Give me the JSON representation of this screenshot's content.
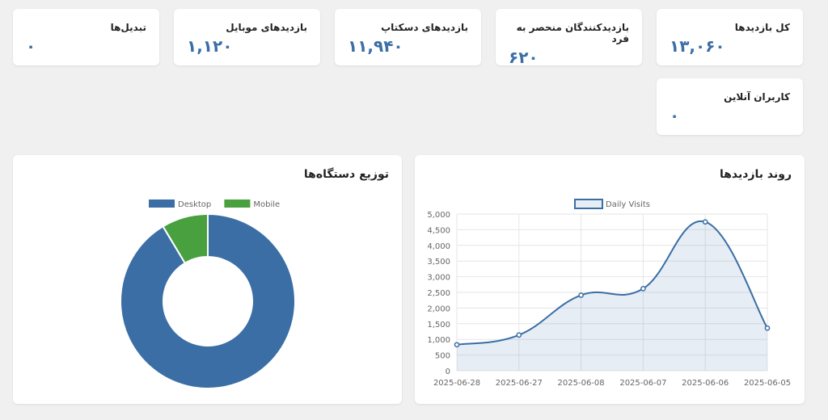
{
  "stats": {
    "total_visits": {
      "label": "کل بازدیدها",
      "value": "۱۳,۰۶۰"
    },
    "unique_visitors": {
      "label": "بازدیدکنندگان منحصر به فرد",
      "value": "۶۲۰"
    },
    "desktop_visits": {
      "label": "بازدیدهای دسکتاپ",
      "value": "۱۱,۹۴۰"
    },
    "mobile_visits": {
      "label": "بازدیدهای موبایل",
      "value": "۱,۱۲۰"
    },
    "conversions": {
      "label": "تبدیل‌ها",
      "value": "۰"
    },
    "online_users": {
      "label": "کاربران آنلاین",
      "value": "۰"
    }
  },
  "visits_trend": {
    "title": "روند بازدیدها"
  },
  "device_distribution": {
    "title": "توزیع دستگاه‌ها"
  },
  "chart_data": [
    {
      "type": "line",
      "title": "روند بازدیدها",
      "categories": [
        "2025-06-28",
        "2025-06-27",
        "2025-06-08",
        "2025-06-07",
        "2025-06-06",
        "2025-06-05"
      ],
      "series": [
        {
          "name": "Daily Visits",
          "values": [
            830,
            1140,
            2410,
            2620,
            4750,
            1360
          ],
          "color": "#3a6ea5",
          "fill": "rgba(58,110,165,0.12)"
        }
      ],
      "ylim": [
        0,
        5000
      ],
      "yticks": [
        "0",
        "500",
        "1,000",
        "1,500",
        "2,000",
        "2,500",
        "3,000",
        "3,500",
        "4,000",
        "4,500",
        "5,000"
      ],
      "grid": true,
      "legend": "top"
    },
    {
      "type": "pie",
      "title": "توزیع دستگاه‌ها",
      "labels": [
        "Desktop",
        "Mobile"
      ],
      "values": [
        11940,
        1120
      ],
      "colors": [
        "#3a6ea5",
        "#48a03e"
      ],
      "donut": true,
      "legend": "top"
    }
  ]
}
